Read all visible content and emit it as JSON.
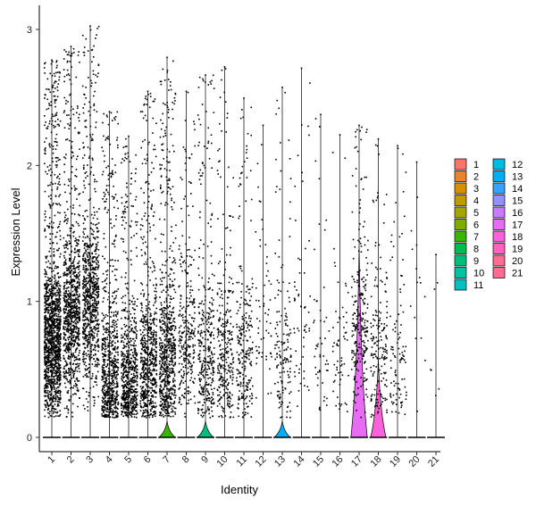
{
  "chart_data": {
    "type": "violin",
    "xlabel": "Identity",
    "ylabel": "Expression Level",
    "ylim": [
      0,
      3
    ],
    "yticks": [
      0,
      1,
      2,
      3
    ],
    "points_overlay": true,
    "grid": false,
    "legend_position": "right",
    "categories": [
      "1",
      "2",
      "3",
      "4",
      "5",
      "6",
      "7",
      "8",
      "9",
      "10",
      "11",
      "12",
      "13",
      "14",
      "15",
      "16",
      "17",
      "18",
      "19",
      "20",
      "21"
    ],
    "colors": [
      "#F8766D",
      "#EA8331",
      "#D89000",
      "#C09B00",
      "#A3A500",
      "#7CAE00",
      "#39B600",
      "#00BB4E",
      "#00BF7D",
      "#00C1A3",
      "#00BFC4",
      "#00BAE0",
      "#00B0F6",
      "#35A2FF",
      "#9590FF",
      "#C77CFF",
      "#E76BF3",
      "#FA62DB",
      "#FF62BC",
      "#FF6C91",
      "#FF6C91"
    ],
    "series": [
      {
        "name": "1",
        "max": 2.78,
        "nonzero_points": 1400,
        "median_nonzero": 0.72
      },
      {
        "name": "2",
        "max": 2.88,
        "nonzero_points": 900,
        "median_nonzero": 0.9
      },
      {
        "name": "3",
        "max": 3.03,
        "nonzero_points": 800,
        "median_nonzero": 1.0
      },
      {
        "name": "4",
        "max": 2.4,
        "nonzero_points": 700,
        "median_nonzero": 0.45
      },
      {
        "name": "5",
        "max": 2.22,
        "nonzero_points": 650,
        "median_nonzero": 0.4
      },
      {
        "name": "6",
        "max": 2.55,
        "nonzero_points": 650,
        "median_nonzero": 0.55
      },
      {
        "name": "7",
        "max": 2.8,
        "nonzero_points": 700,
        "median_nonzero": 0.55,
        "violin_height": 0.12,
        "violin_width": 0.85
      },
      {
        "name": "8",
        "max": 2.55,
        "nonzero_points": 300,
        "median_nonzero": 0.7
      },
      {
        "name": "9",
        "max": 2.67,
        "nonzero_points": 350,
        "median_nonzero": 0.55,
        "violin_height": 0.12,
        "violin_width": 0.85
      },
      {
        "name": "10",
        "max": 2.73,
        "nonzero_points": 300,
        "median_nonzero": 0.6
      },
      {
        "name": "11",
        "max": 2.5,
        "nonzero_points": 250,
        "median_nonzero": 0.6
      },
      {
        "name": "12",
        "max": 2.3,
        "nonzero_points": 60,
        "median_nonzero": 0.9
      },
      {
        "name": "13",
        "max": 2.58,
        "nonzero_points": 150,
        "median_nonzero": 0.55,
        "violin_height": 0.12,
        "violin_width": 0.85
      },
      {
        "name": "14",
        "max": 2.72,
        "nonzero_points": 60,
        "median_nonzero": 0.9
      },
      {
        "name": "15",
        "max": 2.38,
        "nonzero_points": 50,
        "median_nonzero": 0.7
      },
      {
        "name": "16",
        "max": 2.23,
        "nonzero_points": 60,
        "median_nonzero": 0.6
      },
      {
        "name": "17",
        "max": 2.3,
        "nonzero_points": 250,
        "median_nonzero": 0.8,
        "violin_height": 1.42,
        "violin_width": 0.85
      },
      {
        "name": "18",
        "max": 2.2,
        "nonzero_points": 180,
        "median_nonzero": 0.6,
        "violin_height": 0.58,
        "violin_width": 0.8
      },
      {
        "name": "19",
        "max": 2.15,
        "nonzero_points": 100,
        "median_nonzero": 0.5
      },
      {
        "name": "20",
        "max": 2.03,
        "nonzero_points": 15,
        "median_nonzero": 1.0
      },
      {
        "name": "21",
        "max": 1.35,
        "nonzero_points": 6,
        "median_nonzero": 0.5
      }
    ]
  }
}
